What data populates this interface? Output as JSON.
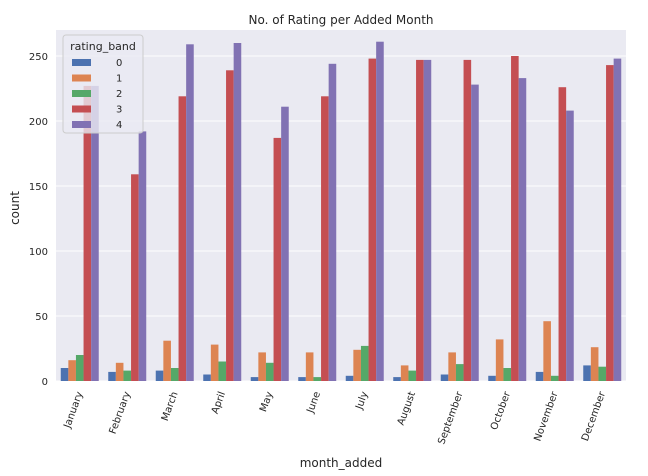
{
  "chart_data": {
    "type": "bar",
    "title": "No. of Rating per Added Month",
    "xlabel": "month_added",
    "ylabel": "count",
    "ylim": [
      0,
      270
    ],
    "yticks": [
      0,
      50,
      100,
      150,
      200,
      250
    ],
    "grid": true,
    "legend_title": "rating_band",
    "legend_position": "top-left",
    "categories": [
      "January",
      "February",
      "March",
      "April",
      "May",
      "June",
      "July",
      "August",
      "September",
      "October",
      "November",
      "December"
    ],
    "series": [
      {
        "name": "0",
        "color": "#4c72b0",
        "values": [
          10,
          7,
          8,
          5,
          3,
          3,
          4,
          3,
          5,
          4,
          7,
          12
        ]
      },
      {
        "name": "1",
        "color": "#dd8452",
        "values": [
          16,
          14,
          31,
          28,
          22,
          22,
          24,
          12,
          22,
          32,
          46,
          26
        ]
      },
      {
        "name": "2",
        "color": "#55a868",
        "values": [
          20,
          8,
          10,
          15,
          14,
          3,
          27,
          8,
          13,
          10,
          4,
          11
        ]
      },
      {
        "name": "3",
        "color": "#c44e52",
        "values": [
          227,
          159,
          219,
          239,
          187,
          219,
          248,
          247,
          247,
          250,
          226,
          243
        ]
      },
      {
        "name": "4",
        "color": "#8172b3",
        "values": [
          227,
          192,
          259,
          260,
          211,
          244,
          261,
          247,
          228,
          233,
          208,
          248
        ]
      }
    ]
  }
}
